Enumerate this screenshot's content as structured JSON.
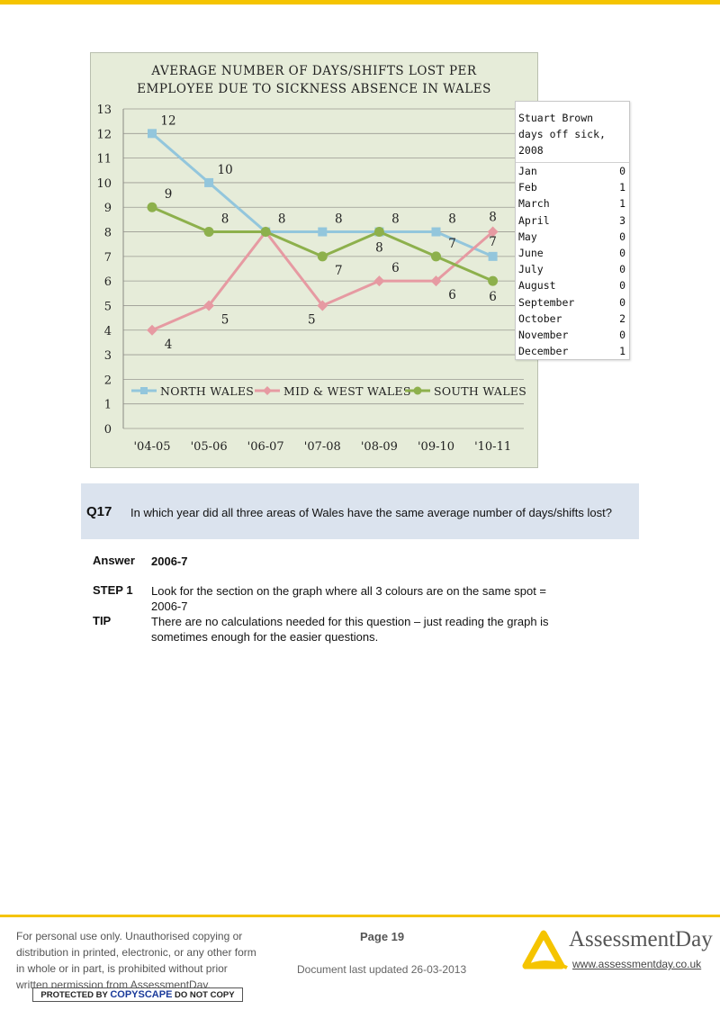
{
  "chart_data": {
    "type": "line",
    "title_lines": [
      "AVERAGE NUMBER OF DAYS/SHIFTS LOST PER",
      "EMPLOYEE DUE TO SICKNESS ABSENCE IN WALES"
    ],
    "categories": [
      "'04-05",
      "'05-06",
      "'06-07",
      "'07-08",
      "'08-09",
      "'09-10",
      "'10-11"
    ],
    "y_ticks": [
      "0",
      "1",
      "2",
      "3",
      "4",
      "5",
      "6",
      "7",
      "8",
      "9",
      "10",
      "11",
      "12",
      "13"
    ],
    "ylim": [
      0,
      13
    ],
    "grid": true,
    "legend_position": "bottom-inside",
    "series": [
      {
        "name": "NORTH WALES",
        "values": [
          12,
          10,
          8,
          8,
          8,
          8,
          7
        ],
        "color": "#93c6dc",
        "marker": "square"
      },
      {
        "name": "MID & WEST WALES",
        "values": [
          4,
          5,
          8,
          5,
          6,
          6,
          8
        ],
        "color": "#e69aa2",
        "marker": "diamond"
      },
      {
        "name": "SOUTH WALES",
        "values": [
          9,
          8,
          8,
          7,
          8,
          7,
          6
        ],
        "color": "#8db04c",
        "marker": "circle"
      }
    ],
    "data_labels": [
      {
        "category": 0,
        "value": 12,
        "text": "12",
        "pos": "above-right"
      },
      {
        "category": 1,
        "value": 10,
        "text": "10",
        "pos": "above-right"
      },
      {
        "category": 0,
        "value": 9,
        "text": "9",
        "pos": "above-right"
      },
      {
        "category": 1,
        "value": 8,
        "text": "8",
        "pos": "above-right"
      },
      {
        "category": 2,
        "value": 8,
        "text": "8",
        "pos": "above-right"
      },
      {
        "category": 3,
        "value": 8,
        "text": "8",
        "pos": "above-right"
      },
      {
        "category": 4,
        "value": 8,
        "text": "8",
        "pos": "above-right"
      },
      {
        "category": 5,
        "value": 8,
        "text": "8",
        "pos": "above-right"
      },
      {
        "category": 6,
        "value": 8,
        "text": "8",
        "pos": "above"
      },
      {
        "category": 6,
        "value": 7,
        "text": "7",
        "pos": "above"
      },
      {
        "category": 3,
        "value": 7,
        "text": "7",
        "pos": "below-right"
      },
      {
        "category": 4,
        "value": 8,
        "text": "8",
        "pos": "below"
      },
      {
        "category": 5,
        "value": 7,
        "text": "7",
        "pos": "above-right"
      },
      {
        "category": 4,
        "value": 6,
        "text": "6",
        "pos": "above-right"
      },
      {
        "category": 5,
        "value": 6,
        "text": "6",
        "pos": "below-right"
      },
      {
        "category": 6,
        "value": 6,
        "text": "6",
        "pos": "below"
      },
      {
        "category": 0,
        "value": 4,
        "text": "4",
        "pos": "below-right"
      },
      {
        "category": 1,
        "value": 5,
        "text": "5",
        "pos": "below-right"
      },
      {
        "category": 3,
        "value": 5,
        "text": "5",
        "pos": "below-left"
      }
    ]
  },
  "sick_table": {
    "title_lines": [
      "Stuart Brown",
      "days off sick,",
      "2008"
    ],
    "rows": [
      {
        "month": "Jan",
        "days": "0"
      },
      {
        "month": "Feb",
        "days": "1"
      },
      {
        "month": "March",
        "days": "1"
      },
      {
        "month": "April",
        "days": "3"
      },
      {
        "month": "May",
        "days": "0"
      },
      {
        "month": "June",
        "days": "0"
      },
      {
        "month": "July",
        "days": "0"
      },
      {
        "month": "August",
        "days": "0"
      },
      {
        "month": "September",
        "days": "0"
      },
      {
        "month": "October",
        "days": "2"
      },
      {
        "month": "November",
        "days": "0"
      },
      {
        "month": "December",
        "days": "1"
      }
    ]
  },
  "question": {
    "number": "Q17",
    "text": "In which year did all three areas of Wales have the same average number of days/shifts lost?"
  },
  "answer": {
    "answer_label": "Answer",
    "answer_value": "2006-7",
    "step_label": "STEP 1",
    "step_text": "Look for the section on the graph where all 3 colours are on the same spot = 2006-7",
    "tip_label": "TIP",
    "tip_text": "There are no calculations needed for this question – just reading the graph is sometimes enough for the easier questions."
  },
  "footer": {
    "legal": "For personal use only. Unauthorised copying or distribution in printed, electronic, or any other form in whole or in part, is prohibited without prior written permission from AssessmentDay.",
    "copyscape_pre": "PROTECTED BY",
    "copyscape_brand": "COPYSCAPE",
    "copyscape_post": "DO NOT COPY",
    "page": "Page 19",
    "updated": "Document last updated 26-03-2013",
    "logo_text": "AssessmentDay",
    "url": "www.assessmentday.co.uk"
  }
}
